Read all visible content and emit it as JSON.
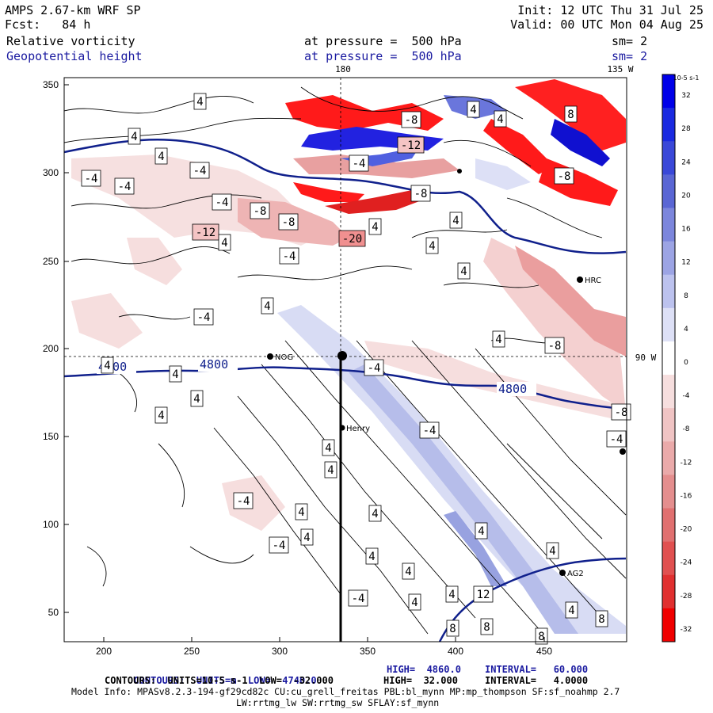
{
  "header": {
    "model": "AMPS 2.67-km WRF SP",
    "fcst": "Fcst:   84 h",
    "init": "Init: 12 UTC Thu 31 Jul 25",
    "valid": "Valid: 00 UTC Mon 04 Aug 25",
    "field1": "Relative vorticity",
    "field2": "Geopotential height",
    "pressure1": "at pressure =  500 hPa",
    "pressure2": "at pressure =  500 hPa",
    "sm1": "sm= 2",
    "sm2": "sm= 2",
    "lon_top_180": "180",
    "lon_top_135": "135 W",
    "lon_right_90": "90 W"
  },
  "axes": {
    "x_ticks": [
      "200",
      "250",
      "300",
      "350",
      "400",
      "450"
    ],
    "y_ticks": [
      "350",
      "300",
      "250",
      "200",
      "150",
      "100",
      "50"
    ]
  },
  "stations": [
    "NOG",
    "Henry",
    "HRC",
    "AG2"
  ],
  "height_labels": [
    "4800",
    "4800",
    "4800"
  ],
  "vort_labels": [
    "4",
    "4",
    "4",
    "4",
    "4",
    "4",
    "4",
    "4",
    "4",
    "4",
    "4",
    "4",
    "4",
    "4",
    "4",
    "4",
    "4",
    "4",
    "4",
    "4",
    "4",
    "4",
    "4",
    "4",
    "4",
    "4",
    "4",
    "4",
    "-4",
    "-4",
    "-4",
    "-4",
    "-4",
    "-4",
    "-4",
    "-4",
    "-4",
    "-4",
    "-4",
    "-4",
    "-4",
    "-8",
    "-8",
    "-8",
    "-8",
    "-8",
    "-8",
    "-8",
    "8",
    "8",
    "8",
    "8",
    "8",
    "12",
    "-12",
    "-12",
    "-20"
  ],
  "colorbar": {
    "units": "10-5 s-1",
    "labels": [
      "32",
      "28",
      "24",
      "20",
      "16",
      "12",
      "8",
      "4",
      "0",
      "-4",
      "-8",
      "-12",
      "-16",
      "-20",
      "-24",
      "-28",
      "-32"
    ],
    "colors": [
      "#0000e8",
      "#1a2ae0",
      "#3a48d8",
      "#5a66d4",
      "#7c86dc",
      "#9ca4e4",
      "#bcc2ee",
      "#dde0f6",
      "#ffffff",
      "#f6dede",
      "#f0c4c4",
      "#eaaaaa",
      "#e48e8e",
      "#e07070",
      "#e05050",
      "#e03030",
      "#f00000"
    ]
  },
  "footer": {
    "line1_a": "CONTOURS:  UNITS=m  LOW=  4740.0",
    "line1_b": "HIGH=  4860.0",
    "line1_c": "INTERVAL=   60.000",
    "line2_a": "CONTOURS:  UNITS=10-5 s-1  LOW=  -32.000",
    "line2_b": "HIGH=  32.000",
    "line2_c": "INTERVAL=   4.0000",
    "line3": "Model Info: MPASv8.2.3-194-gf29cd82c CU:cu_grell_freitas PBL:bl_mynn MP:mp_thompson SF:sf_noahmp 2.7",
    "line4": "LW:rrtmg_lw SW:rrtmg_sw SFLAY:sf_mynn"
  }
}
